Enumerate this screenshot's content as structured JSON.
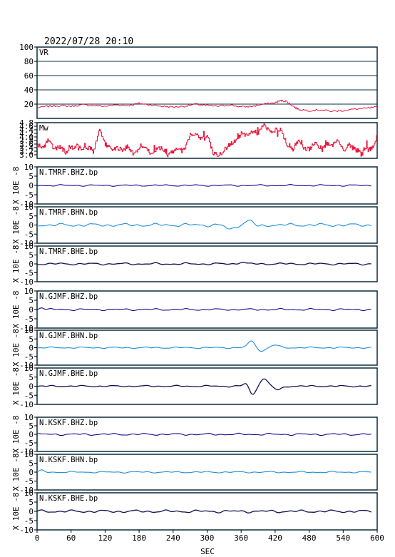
{
  "header": {
    "timestamp": "2022/07/28 20:10"
  },
  "xaxis": {
    "label": "SEC",
    "ticks": [
      0,
      60,
      120,
      180,
      240,
      300,
      360,
      420,
      480,
      540,
      600
    ],
    "range": [
      0,
      600
    ]
  },
  "colors": {
    "vr": "#e8173c",
    "mw": "#e8173c",
    "navy": "#0b0b8c",
    "cyan": "#1f8fd6",
    "black_curve": "#101050",
    "grid": "#0a3045",
    "frame": "#0a2a3a"
  },
  "chart_data": [
    {
      "type": "line",
      "title": "VR",
      "ylim": [
        0,
        100
      ],
      "yticks": [
        20,
        40,
        60,
        80,
        100
      ],
      "grid": true,
      "color": "#e8173c",
      "x": [
        0,
        20,
        40,
        60,
        80,
        100,
        120,
        140,
        160,
        180,
        200,
        220,
        240,
        260,
        280,
        300,
        320,
        340,
        360,
        380,
        400,
        420,
        430,
        440,
        450,
        460,
        480,
        500,
        520,
        540,
        560,
        580,
        600
      ],
      "values": [
        15,
        17,
        18,
        17,
        19,
        18,
        17,
        19,
        18,
        21,
        19,
        17,
        16,
        17,
        20,
        18,
        17,
        19,
        16,
        17,
        20,
        22,
        25,
        24,
        18,
        13,
        11,
        12,
        10,
        11,
        13,
        14,
        16
      ]
    },
    {
      "type": "line",
      "title": "Mw",
      "ylim": [
        2.8,
        4.8
      ],
      "yticks": [
        3.0,
        3.2,
        3.4,
        3.6,
        3.8,
        4.0,
        4.2,
        4.4,
        4.6,
        4.8
      ],
      "grid": false,
      "color": "#e8173c",
      "x": [
        0,
        10,
        20,
        30,
        40,
        50,
        60,
        70,
        80,
        90,
        100,
        110,
        120,
        130,
        140,
        150,
        160,
        170,
        180,
        190,
        200,
        210,
        220,
        230,
        240,
        250,
        260,
        270,
        280,
        290,
        300,
        310,
        320,
        330,
        340,
        350,
        360,
        370,
        380,
        390,
        400,
        410,
        420,
        430,
        440,
        450,
        460,
        470,
        480,
        490,
        500,
        510,
        520,
        530,
        540,
        550,
        560,
        570,
        580,
        590,
        600
      ],
      "values": [
        3.6,
        3.4,
        3.8,
        3.3,
        3.5,
        3.1,
        3.4,
        3.5,
        3.3,
        3.4,
        3.3,
        4.4,
        3.6,
        3.3,
        3.4,
        3.2,
        3.5,
        3.0,
        3.3,
        3.5,
        3.1,
        3.3,
        3.4,
        3.0,
        3.2,
        3.4,
        3.3,
        4.1,
        4.2,
        3.9,
        4.1,
        3.1,
        3.0,
        3.3,
        3.6,
        3.8,
        4.2,
        4.0,
        4.3,
        4.2,
        4.7,
        4.3,
        4.4,
        4.4,
        3.6,
        3.3,
        3.8,
        3.4,
        3.3,
        3.7,
        3.2,
        3.6,
        3.5,
        3.9,
        3.2,
        3.6,
        3.3,
        3.2,
        3.4,
        3.3,
        4.1
      ]
    },
    {
      "type": "line",
      "title": "N.TMRF.BHZ.bp",
      "ylim": [
        -10,
        10
      ],
      "yticks": [
        -10,
        -5,
        0,
        5,
        10
      ],
      "ylabel": "X 10E -8",
      "color": "#0b0b8c",
      "amp": 0.3,
      "bursts": []
    },
    {
      "type": "line",
      "title": "N.TMRF.BHN.bp",
      "ylim": [
        -10,
        10
      ],
      "yticks": [
        -10,
        -5,
        0,
        5,
        10
      ],
      "ylabel": "X 10E -8",
      "color": "#1f8fd6",
      "amp": 0.6,
      "bursts": [
        {
          "x": 340,
          "a": -2.5,
          "w": 10
        },
        {
          "x": 375,
          "a": 2.5,
          "w": 10
        },
        {
          "x": 390,
          "a": -1.2,
          "w": 8
        }
      ]
    },
    {
      "type": "line",
      "title": "N.TMRF.BHE.bp",
      "ylim": [
        -10,
        10
      ],
      "yticks": [
        -10,
        -5,
        0,
        5,
        10
      ],
      "ylabel": "X 10E -8",
      "color": "#101050",
      "amp": 0.4,
      "bursts": [
        {
          "x": 360,
          "a": 1.0,
          "w": 8
        }
      ]
    },
    {
      "type": "line",
      "title": "N.GJMF.BHZ.bp",
      "ylim": [
        -10,
        10
      ],
      "yticks": [
        -10,
        -5,
        0,
        5,
        10
      ],
      "ylabel": "X 10E -8",
      "color": "#0b0b8c",
      "amp": 0.35,
      "bursts": [
        {
          "x": 8,
          "a": 1.2,
          "w": 6
        }
      ]
    },
    {
      "type": "line",
      "title": "N.GJMF.BHN.bp",
      "ylim": [
        -10,
        10
      ],
      "yticks": [
        -10,
        -5,
        0,
        5,
        10
      ],
      "ylabel": "X 10E -8",
      "color": "#1f8fd6",
      "amp": 0.3,
      "bursts": [
        {
          "x": 378,
          "a": 3.5,
          "w": 9
        },
        {
          "x": 396,
          "a": -2.0,
          "w": 8
        },
        {
          "x": 420,
          "a": 1.5,
          "w": 9
        }
      ]
    },
    {
      "type": "line",
      "title": "N.GJMF.BHE.bp",
      "ylim": [
        -10,
        10
      ],
      "yticks": [
        -10,
        -5,
        0,
        5,
        10
      ],
      "ylabel": "X 10E -8",
      "color": "#101050",
      "amp": 0.3,
      "bursts": [
        {
          "x": 370,
          "a": 2.0,
          "w": 7
        },
        {
          "x": 380,
          "a": -5.0,
          "w": 8
        },
        {
          "x": 400,
          "a": 4.0,
          "w": 10
        },
        {
          "x": 425,
          "a": -2.0,
          "w": 10
        }
      ]
    },
    {
      "type": "line",
      "title": "N.KSKF.BHZ.bp",
      "ylim": [
        -10,
        10
      ],
      "yticks": [
        -10,
        -5,
        0,
        5,
        10
      ],
      "ylabel": "X 10E -8",
      "color": "#0b0b8c",
      "amp": 0.4,
      "bursts": []
    },
    {
      "type": "line",
      "title": "N.KSKF.BHN.bp",
      "ylim": [
        -10,
        10
      ],
      "yticks": [
        -10,
        -5,
        0,
        5,
        10
      ],
      "ylabel": "X 10E -8",
      "color": "#1f8fd6",
      "amp": 0.3,
      "bursts": [
        {
          "x": 8,
          "a": 0.8,
          "w": 6
        }
      ]
    },
    {
      "type": "line",
      "title": "N.KSKF.BHE.bp",
      "ylim": [
        -10,
        10
      ],
      "yticks": [
        -10,
        -5,
        0,
        5,
        10
      ],
      "ylabel": "X 10E -8",
      "color": "#101050",
      "amp": 0.5,
      "bursts": []
    }
  ]
}
